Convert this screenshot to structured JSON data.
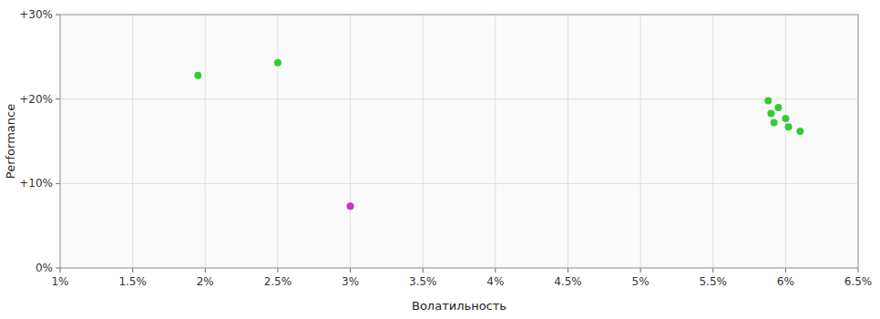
{
  "chart_data": {
    "type": "scatter",
    "xlabel": "Волатильность",
    "ylabel": "Performance",
    "xlim": [
      0.01,
      0.065
    ],
    "ylim": [
      0.0,
      0.3
    ],
    "xticks": [
      {
        "value": 0.01,
        "label": "1%"
      },
      {
        "value": 0.015,
        "label": "1.5%"
      },
      {
        "value": 0.02,
        "label": "2%"
      },
      {
        "value": 0.025,
        "label": "2.5%"
      },
      {
        "value": 0.03,
        "label": "3%"
      },
      {
        "value": 0.035,
        "label": "3.5%"
      },
      {
        "value": 0.04,
        "label": "4%"
      },
      {
        "value": 0.045,
        "label": "4.5%"
      },
      {
        "value": 0.05,
        "label": "5%"
      },
      {
        "value": 0.055,
        "label": "5.5%"
      },
      {
        "value": 0.06,
        "label": "6%"
      },
      {
        "value": 0.065,
        "label": "6.5%"
      }
    ],
    "yticks": [
      {
        "value": 0.0,
        "label": "0%"
      },
      {
        "value": 0.1,
        "label": "+10%"
      },
      {
        "value": 0.2,
        "label": "+20%"
      },
      {
        "value": 0.3,
        "label": "+30%"
      }
    ],
    "grid": true,
    "series": [
      {
        "color": "#33cc33",
        "x": [
          0.0195,
          0.025,
          0.0588,
          0.0595,
          0.059,
          0.06,
          0.0592,
          0.0602,
          0.061
        ],
        "values": [
          0.228,
          0.243,
          0.198,
          0.19,
          0.183,
          0.177,
          0.172,
          0.167,
          0.162
        ]
      },
      {
        "color": "#cc33cc",
        "x": [
          0.03
        ],
        "values": [
          0.073
        ]
      }
    ]
  }
}
